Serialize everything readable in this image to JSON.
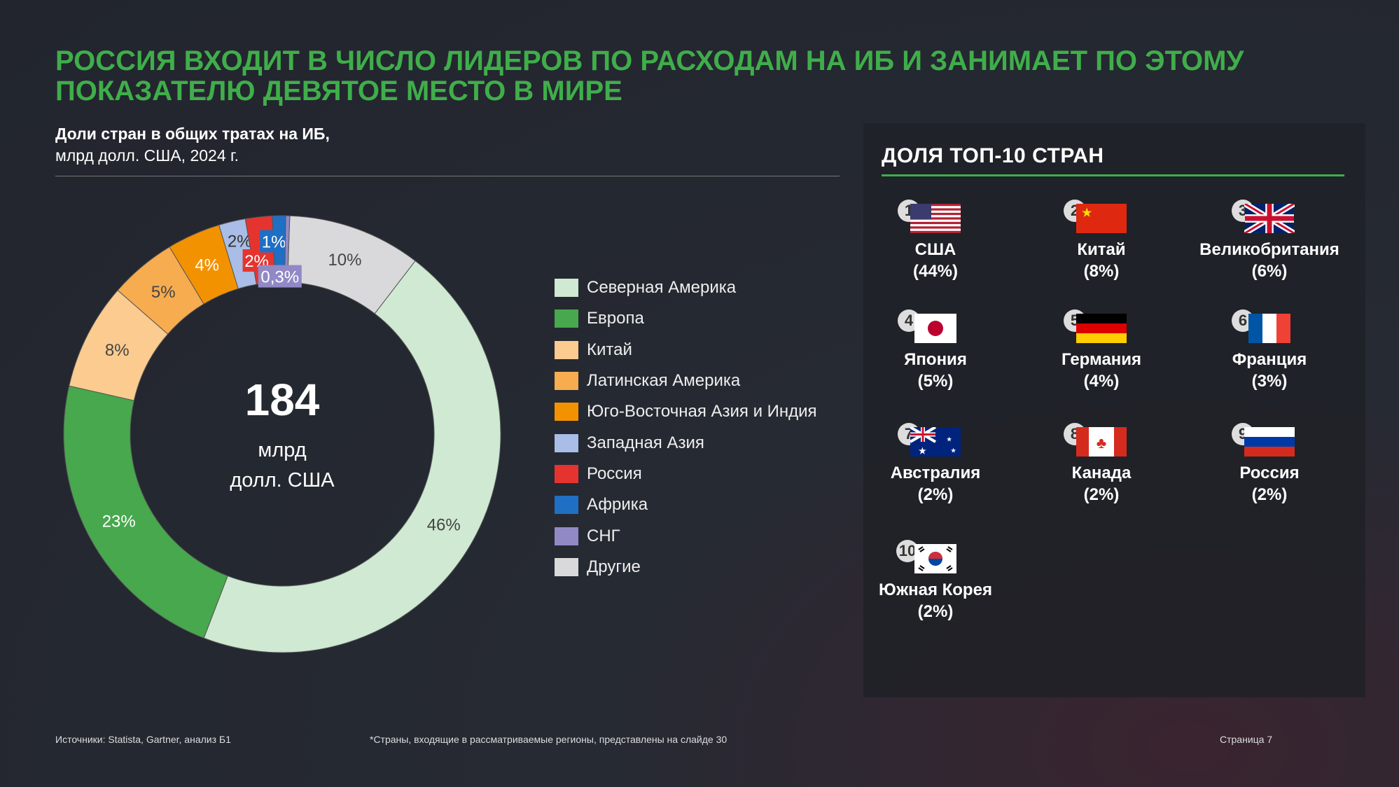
{
  "title": "РОССИЯ ВХОДИТ В ЧИСЛО ЛИДЕРОВ ПО РАСХОДАМ НА ИБ И ЗАНИМАЕТ ПО ЭТОМУ ПОКАЗАТЕЛЮ ДЕВЯТОЕ МЕСТО В МИРЕ",
  "subtitle_bold": "Доли стран в общих тратах на ИБ,",
  "subtitle": "млрд долл. США, 2024 г.",
  "chart_data": {
    "type": "pie",
    "title": "Доли стран в общих тратах на ИБ, млрд долл. США, 2024 г.",
    "center_value": "184",
    "center_unit_1": "млрд",
    "center_unit_2": "долл. США",
    "legend_position": "right",
    "slices": [
      {
        "name": "Другие",
        "value": 10,
        "label": "10%",
        "color": "#d9d9dc"
      },
      {
        "name": "Северная Америка",
        "value": 46,
        "label": "46%",
        "color": "#cfe9d2"
      },
      {
        "name": "Европа",
        "value": 23,
        "label": "23%",
        "color": "#47a84d"
      },
      {
        "name": "Китай",
        "value": 8,
        "label": "8%",
        "color": "#fbcb8f"
      },
      {
        "name": "Латинская Америка",
        "value": 5,
        "label": "5%",
        "color": "#f6ac4f"
      },
      {
        "name": "Юго-Восточная Азия и Индия",
        "value": 4,
        "label": "4%",
        "color": "#f39200"
      },
      {
        "name": "Западная Азия",
        "value": 2,
        "label": "2%",
        "color": "#a9bde6"
      },
      {
        "name": "Россия",
        "value": 2,
        "label": "2%",
        "color": "#e5342f"
      },
      {
        "name": "Африка",
        "value": 1,
        "label": "1%",
        "color": "#1f6fc5"
      },
      {
        "name": "СНГ",
        "value": 0.3,
        "label": "0,3%",
        "color": "#9189c6"
      }
    ],
    "legend_order": [
      "Северная Америка",
      "Европа",
      "Китай",
      "Латинская Америка",
      "Юго-Восточная Азия и Индия",
      "Западная Азия",
      "Россия",
      "Африка",
      "СНГ",
      "Другие"
    ]
  },
  "panel": {
    "title": "ДОЛЯ ТОП-10 СТРАН",
    "countries": [
      {
        "rank": "1",
        "name": "США",
        "share": "(44%)",
        "flag": "us"
      },
      {
        "rank": "2",
        "name": "Китай",
        "share": "(8%)",
        "flag": "cn"
      },
      {
        "rank": "3",
        "name": "Великобритания",
        "share": "(6%)",
        "flag": "gb"
      },
      {
        "rank": "4",
        "name": "Япония",
        "share": "(5%)",
        "flag": "jp"
      },
      {
        "rank": "5",
        "name": "Германия",
        "share": "(4%)",
        "flag": "de"
      },
      {
        "rank": "6",
        "name": "Франция",
        "share": "(3%)",
        "flag": "fr"
      },
      {
        "rank": "7",
        "name": "Австралия",
        "share": "(2%)",
        "flag": "au"
      },
      {
        "rank": "8",
        "name": "Канада",
        "share": "(2%)",
        "flag": "ca"
      },
      {
        "rank": "9",
        "name": "Россия",
        "share": "(2%)",
        "flag": "ru"
      },
      {
        "rank": "10",
        "name": "Южная Корея",
        "share": "(2%)",
        "flag": "kr"
      }
    ]
  },
  "footer": {
    "sources": "Источники: Statista, Gartner, анализ Б1",
    "note": "*Страны, входящие в рассматриваемые регионы, представлены на слайде 30",
    "page": "Страница 7"
  }
}
